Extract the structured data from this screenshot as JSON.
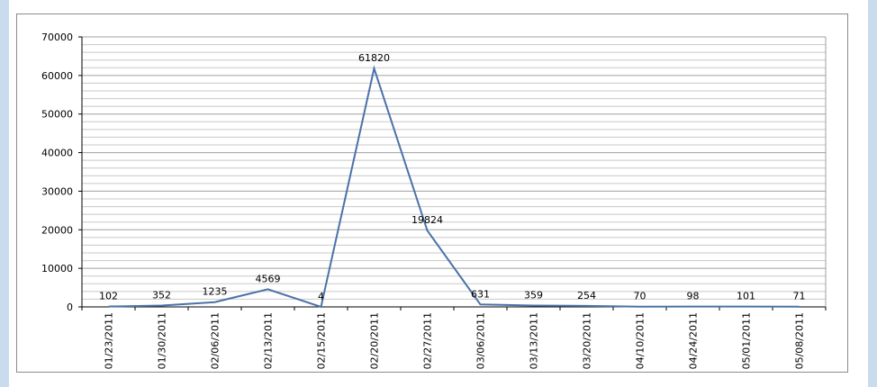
{
  "chart_data": {
    "type": "line",
    "title": "",
    "xlabel": "",
    "ylabel": "",
    "ylim": [
      0,
      70000
    ],
    "y_major_ticks": [
      0,
      10000,
      20000,
      30000,
      40000,
      50000,
      60000,
      70000
    ],
    "y_minor_step": 2000,
    "grid": true,
    "legend": "none",
    "line_color": "#4a72a8",
    "categories": [
      "01/23/2011",
      "01/30/2011",
      "02/06/2011",
      "02/13/2011",
      "02/15/2011",
      "02/20/2011",
      "02/27/2011",
      "03/06/2011",
      "03/13/2011",
      "03/20/2011",
      "04/10/2011",
      "04/24/2011",
      "05/01/2011",
      "05/08/2011"
    ],
    "values": [
      102,
      352,
      1235,
      4569,
      4,
      61820,
      19824,
      631,
      359,
      254,
      70,
      98,
      101,
      71
    ],
    "data_labels": [
      "102",
      "352",
      "1235",
      "4569",
      "4",
      "61820",
      "19824",
      "631",
      "359",
      "254",
      "70",
      "98",
      "101",
      "71"
    ]
  }
}
